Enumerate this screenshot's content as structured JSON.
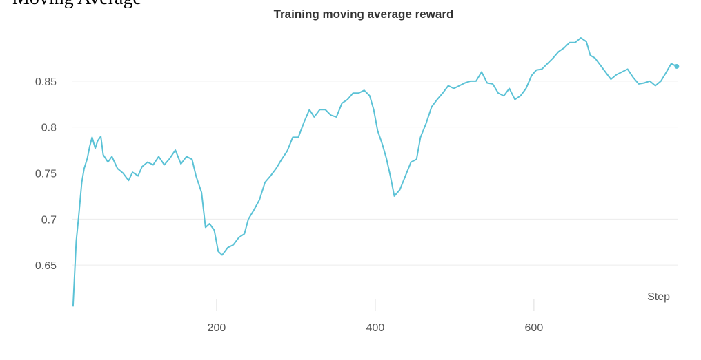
{
  "header": "Moving Average",
  "chart_data": {
    "type": "line",
    "title": "Training moving average reward",
    "x_label": "Step",
    "x": [
      19,
      23,
      26,
      30,
      33,
      37,
      40,
      43,
      47,
      50,
      54,
      57,
      63,
      68,
      75,
      82,
      89,
      94,
      101,
      106,
      113,
      120,
      127,
      134,
      141,
      148,
      155,
      162,
      169,
      174,
      181,
      186,
      191,
      197,
      202,
      207,
      214,
      221,
      228,
      235,
      240,
      247,
      254,
      261,
      268,
      275,
      282,
      289,
      296,
      303,
      310,
      317,
      323,
      330,
      337,
      344,
      351,
      358,
      365,
      372,
      379,
      386,
      393,
      398,
      403,
      409,
      414,
      419,
      424,
      431,
      438,
      445,
      452,
      457,
      464,
      471,
      478,
      485,
      492,
      499,
      506,
      513,
      520,
      527,
      534,
      541,
      548,
      555,
      562,
      569,
      576,
      583,
      590,
      597,
      603,
      610,
      617,
      624,
      631,
      638,
      645,
      652,
      659,
      666,
      671,
      677,
      684,
      690,
      697,
      704,
      711,
      718,
      725,
      732,
      739,
      746,
      753,
      760,
      767,
      773,
      780
    ],
    "values": [
      0.605,
      0.676,
      0.702,
      0.74,
      0.755,
      0.766,
      0.779,
      0.789,
      0.777,
      0.785,
      0.79,
      0.77,
      0.762,
      0.768,
      0.755,
      0.75,
      0.742,
      0.751,
      0.747,
      0.757,
      0.762,
      0.759,
      0.768,
      0.759,
      0.766,
      0.775,
      0.76,
      0.768,
      0.765,
      0.747,
      0.729,
      0.691,
      0.695,
      0.688,
      0.665,
      0.661,
      0.669,
      0.672,
      0.68,
      0.684,
      0.7,
      0.71,
      0.721,
      0.74,
      0.747,
      0.755,
      0.765,
      0.774,
      0.789,
      0.789,
      0.805,
      0.819,
      0.811,
      0.819,
      0.819,
      0.813,
      0.811,
      0.826,
      0.83,
      0.837,
      0.837,
      0.84,
      0.834,
      0.819,
      0.796,
      0.781,
      0.766,
      0.747,
      0.725,
      0.732,
      0.747,
      0.762,
      0.765,
      0.789,
      0.804,
      0.822,
      0.83,
      0.837,
      0.845,
      0.842,
      0.845,
      0.848,
      0.85,
      0.85,
      0.86,
      0.848,
      0.847,
      0.837,
      0.834,
      0.842,
      0.83,
      0.834,
      0.842,
      0.856,
      0.862,
      0.863,
      0.869,
      0.875,
      0.882,
      0.886,
      0.892,
      0.892,
      0.897,
      0.893,
      0.878,
      0.875,
      0.867,
      0.86,
      0.852,
      0.857,
      0.86,
      0.863,
      0.854,
      0.847,
      0.848,
      0.85,
      0.845,
      0.85,
      0.86,
      0.869,
      0.866
    ],
    "color": "#5bc2d6",
    "xlim": [
      18,
      781
    ],
    "ylim": [
      0.6,
      0.9
    ],
    "xticks": [
      200,
      400,
      600
    ],
    "yticks": [
      0.65,
      0.7,
      0.75,
      0.8,
      0.85
    ],
    "grid": true
  }
}
